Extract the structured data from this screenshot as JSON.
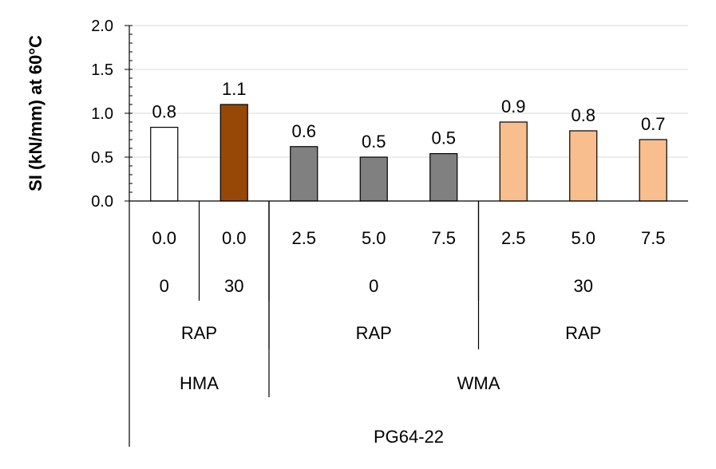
{
  "chart_data": {
    "type": "bar",
    "ylabel": "SI (kN/mm) at 60°C",
    "ylim": [
      0,
      2.0
    ],
    "yticks": [
      "0.0",
      "0.5",
      "1.0",
      "1.5",
      "2.0"
    ],
    "ytick_values": [
      0,
      0.5,
      1.0,
      1.5,
      2.0
    ],
    "grid": true,
    "colors": {
      "hma_0": "#ffffff",
      "hma_30": "#974706",
      "wma_0": "#808080",
      "wma_30": "#f8be8e"
    },
    "bars": [
      {
        "value": 0.84,
        "label": "0.8",
        "level1": "0.0",
        "color_key": "hma_0"
      },
      {
        "value": 1.1,
        "label": "1.1",
        "level1": "0.0",
        "color_key": "hma_30"
      },
      {
        "value": 0.62,
        "label": "0.6",
        "level1": "2.5",
        "color_key": "wma_0"
      },
      {
        "value": 0.5,
        "label": "0.5",
        "level1": "5.0",
        "color_key": "wma_0"
      },
      {
        "value": 0.54,
        "label": "0.5",
        "level1": "7.5",
        "color_key": "wma_0"
      },
      {
        "value": 0.9,
        "label": "0.9",
        "level1": "2.5",
        "color_key": "wma_30"
      },
      {
        "value": 0.8,
        "label": "0.8",
        "level1": "5.0",
        "color_key": "wma_30"
      },
      {
        "value": 0.7,
        "label": "0.7",
        "level1": "7.5",
        "color_key": "wma_30"
      }
    ],
    "level2": [
      {
        "label": "0",
        "start": 0,
        "end": 0
      },
      {
        "label": "30",
        "start": 1,
        "end": 1
      },
      {
        "label": "0",
        "start": 2,
        "end": 4
      },
      {
        "label": "30",
        "start": 5,
        "end": 7
      }
    ],
    "level3": [
      {
        "label": "RAP",
        "start": 0,
        "end": 1
      },
      {
        "label": "RAP",
        "start": 2,
        "end": 4
      },
      {
        "label": "RAP",
        "start": 5,
        "end": 7
      }
    ],
    "level4": [
      {
        "label": "HMA",
        "start": 0,
        "end": 1
      },
      {
        "label": "WMA",
        "start": 2,
        "end": 7
      }
    ],
    "level5": [
      {
        "label": "PG64-22",
        "start": 0,
        "end": 7
      }
    ]
  }
}
